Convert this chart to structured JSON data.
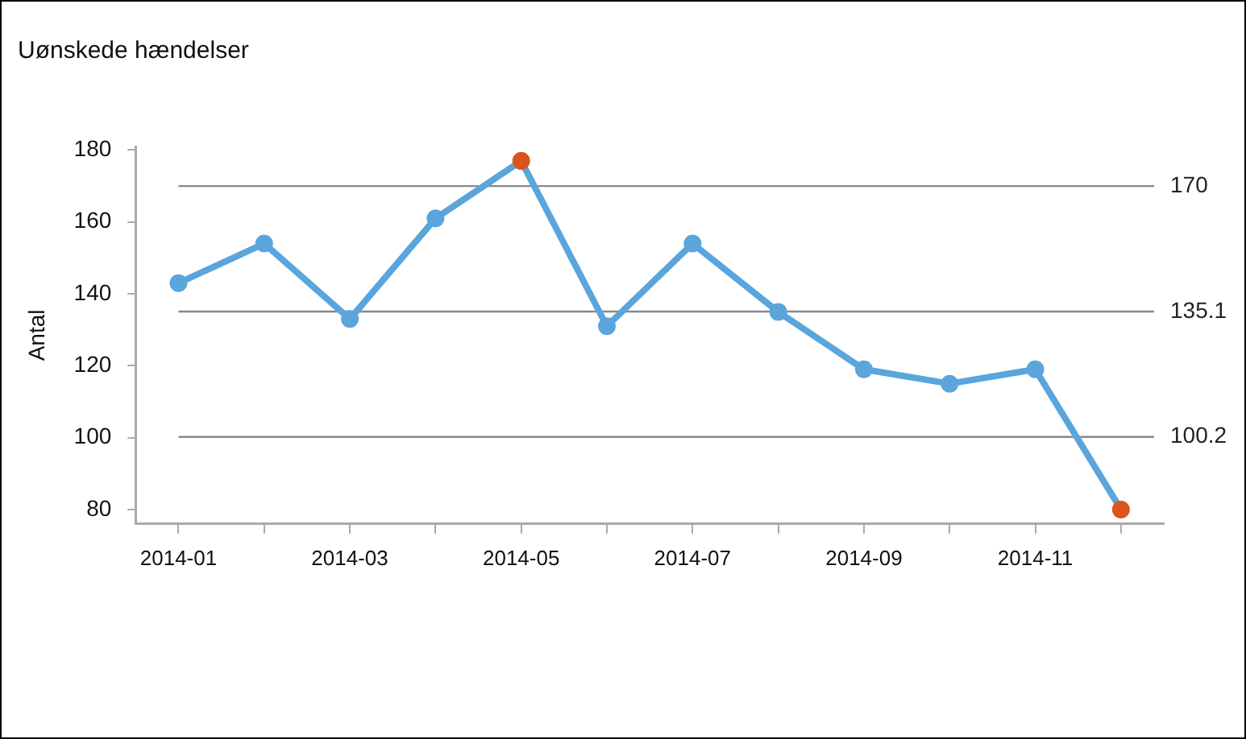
{
  "chart_data": {
    "type": "line",
    "title": "Uønskede hændelser",
    "ylabel": "Antal",
    "categories": [
      "2014-01",
      null,
      "2014-03",
      null,
      "2014-05",
      null,
      "2014-07",
      null,
      "2014-09",
      null,
      "2014-11",
      null
    ],
    "series": [
      {
        "color": "#5aa5dc",
        "colors": [
          "#5aa5dc",
          "#5aa5dc",
          "#5aa5dc",
          "#5aa5dc",
          "#d9541e",
          "#5aa5dc",
          "#5aa5dc",
          "#5aa5dc",
          "#5aa5dc",
          "#5aa5dc",
          "#5aa5dc",
          "#d9541e"
        ],
        "values": [
          143,
          154,
          133,
          161,
          177,
          131,
          154,
          135,
          119,
          115,
          119,
          80
        ]
      }
    ],
    "ylim": [
      76,
      181
    ],
    "yticks": [
      80,
      100,
      120,
      140,
      160,
      180
    ],
    "ref_lines": [
      {
        "axis": "y",
        "value": 170,
        "label": "170",
        "color": "#888888"
      },
      {
        "axis": "y",
        "value": 135.1,
        "label": "135.1",
        "color": "#888888"
      },
      {
        "axis": "y",
        "value": 100.2,
        "label": "100.2",
        "color": "#888888"
      }
    ],
    "grid": false,
    "legend": false,
    "marker": "circle",
    "line_style": "solid"
  }
}
